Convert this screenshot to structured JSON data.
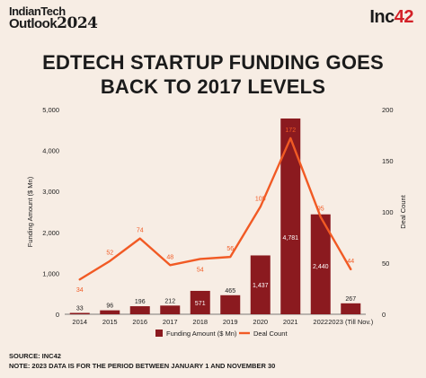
{
  "brand": {
    "outlook_line1": "IndianTech",
    "outlook_line2": "Outlook",
    "outlook_year": "2024",
    "logo_text": "Inc",
    "logo_num": "42"
  },
  "footer": {
    "source": "SOURCE: INC42",
    "note": "NOTE: 2023 DATA IS FOR THE PERIOD BETWEEN JANUARY 1 AND NOVEMBER 30"
  },
  "chart_data": {
    "type": "bar",
    "title_line1": "EDTECH STARTUP FUNDING GOES",
    "title_line2": "BACK TO 2017 LEVELS",
    "categories": [
      "2014",
      "2015",
      "2016",
      "2017",
      "2018",
      "2019",
      "2020",
      "2021",
      "2022",
      "2023 (Till Nov.)"
    ],
    "series": [
      {
        "name": "Funding Amount ($ Mn)",
        "type": "bar",
        "axis": "left",
        "values": [
          33,
          96,
          196,
          212,
          571,
          465,
          1437,
          4781,
          2440,
          267
        ]
      },
      {
        "name": "Deal Count",
        "type": "line",
        "axis": "right",
        "values": [
          34,
          52,
          74,
          48,
          54,
          56,
          105,
          172,
          95,
          44
        ]
      }
    ],
    "ylabel": "Funding Amount ($ Mn)",
    "y2label": "Deal Count",
    "ylim": [
      0,
      5000
    ],
    "y2lim": [
      0,
      200
    ],
    "yticks": [
      "0",
      "1,000",
      "2,000",
      "3,000",
      "4,000",
      "5,000"
    ],
    "y2ticks": [
      "0",
      "50",
      "100",
      "150",
      "200"
    ],
    "bar_labels": [
      "33",
      "96",
      "196",
      "212",
      "571",
      "465",
      "1,437",
      "4,781",
      "2,440",
      "267"
    ],
    "line_labels": [
      "34",
      "52",
      "74",
      "48",
      "54",
      "56",
      "105",
      "172",
      "95",
      "44"
    ],
    "legend_position": "bottom",
    "grid": false,
    "colors": {
      "bar": "#8b1a1f",
      "line": "#f15a24",
      "text": "#1b1b1b",
      "axis": "#555555"
    }
  }
}
